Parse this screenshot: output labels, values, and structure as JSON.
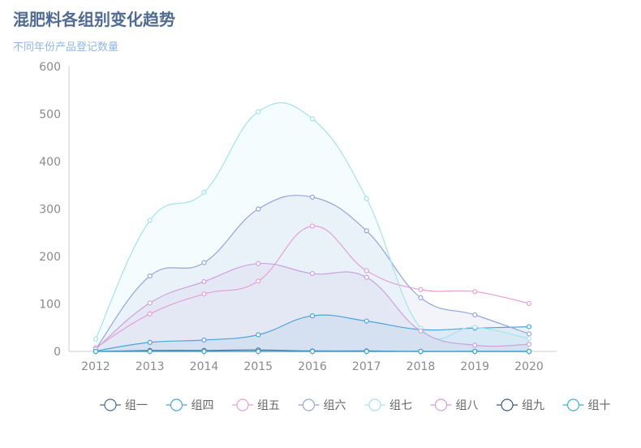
{
  "title": "混肥料各组别变化趋势",
  "subtitle": "不同年份产品登记数量",
  "chart_data": {
    "type": "area",
    "categories": [
      "2012",
      "2013",
      "2014",
      "2015",
      "2016",
      "2017",
      "2018",
      "2019",
      "2020"
    ],
    "ylim": [
      0,
      600
    ],
    "yticks": [
      0,
      100,
      200,
      300,
      400,
      500,
      600
    ],
    "smooth": true,
    "legend_position": "bottom",
    "series": [
      {
        "name": "组一",
        "values": [
          0,
          2,
          2,
          3,
          1,
          1,
          0,
          0,
          0
        ],
        "color": "#516b91",
        "area": false
      },
      {
        "name": "组四",
        "values": [
          1,
          19,
          24,
          35,
          75,
          64,
          46,
          49,
          52
        ],
        "color": "#4ea4d9",
        "area": true
      },
      {
        "name": "组五",
        "values": [
          8,
          79,
          121,
          148,
          264,
          170,
          130,
          126,
          101
        ],
        "color": "#e49fd7",
        "area": false
      },
      {
        "name": "组六",
        "values": [
          5,
          159,
          187,
          300,
          325,
          254,
          113,
          77,
          37
        ],
        "color": "#95a7d8",
        "area": true
      },
      {
        "name": "组七",
        "values": [
          26,
          276,
          335,
          505,
          490,
          322,
          49,
          51,
          27
        ],
        "color": "#a4e3ec",
        "area": true
      },
      {
        "name": "组八",
        "values": [
          5,
          102,
          147,
          185,
          164,
          156,
          43,
          13,
          15
        ],
        "color": "#cda2dd",
        "area": true
      },
      {
        "name": "组九",
        "values": [
          0,
          0,
          0,
          0,
          0,
          0,
          0,
          0,
          0
        ],
        "color": "#3f5a7a",
        "area": false
      },
      {
        "name": "组十",
        "values": [
          0,
          0,
          0,
          0,
          0,
          0,
          0,
          0,
          0
        ],
        "color": "#3fb1d6",
        "area": false
      }
    ]
  }
}
